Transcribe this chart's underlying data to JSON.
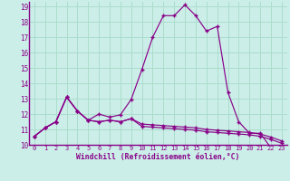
{
  "xlabel": "Windchill (Refroidissement éolien,°C)",
  "background_color": "#cceee8",
  "line_color": "#880088",
  "grid_color": "#aaddcc",
  "xlim": [
    -0.5,
    23.5
  ],
  "ylim": [
    10.3,
    19.3
  ],
  "xticks": [
    0,
    1,
    2,
    3,
    4,
    5,
    6,
    7,
    8,
    9,
    10,
    11,
    12,
    13,
    14,
    15,
    16,
    17,
    18,
    19,
    20,
    21,
    22,
    23
  ],
  "yticks": [
    10,
    11,
    12,
    13,
    14,
    15,
    16,
    17,
    18,
    19
  ],
  "series1": [
    10.55,
    11.1,
    11.5,
    13.1,
    12.2,
    11.6,
    12.0,
    11.8,
    11.95,
    12.95,
    14.9,
    17.0,
    18.4,
    18.4,
    19.1,
    18.4,
    17.4,
    17.7,
    13.4,
    11.5,
    10.75,
    10.75,
    9.8,
    9.7
  ],
  "series2": [
    10.55,
    11.1,
    11.5,
    13.1,
    12.2,
    11.6,
    11.5,
    11.6,
    11.5,
    11.7,
    11.35,
    11.3,
    11.25,
    11.2,
    11.15,
    11.1,
    11.0,
    10.95,
    10.9,
    10.85,
    10.8,
    10.7,
    10.5,
    10.25
  ],
  "series3": [
    10.55,
    11.1,
    11.5,
    13.1,
    12.2,
    11.6,
    11.5,
    11.6,
    11.5,
    11.7,
    11.2,
    11.15,
    11.1,
    11.05,
    11.0,
    10.95,
    10.85,
    10.8,
    10.75,
    10.7,
    10.65,
    10.55,
    10.35,
    10.1
  ]
}
